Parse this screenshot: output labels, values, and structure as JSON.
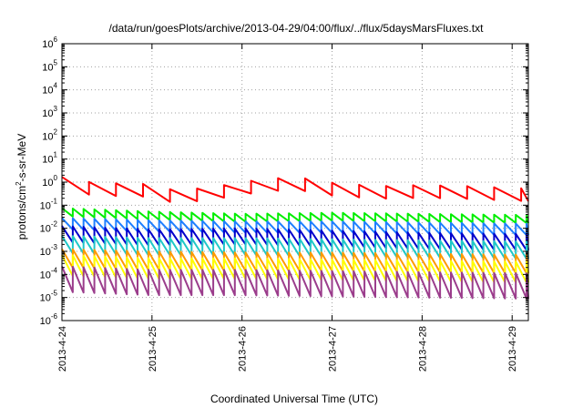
{
  "chart_data": {
    "type": "line",
    "title": "/data/run/goesPlots/archive/2013-04-29/04:00/flux/../flux/5daysMarsFluxes.txt",
    "xlabel": "Coordinated Universal Time (UTC)",
    "ylabel_main": "protons/cm",
    "ylabel_sup": "2",
    "ylabel_tail": "-s-sr-MeV",
    "yscale": "log",
    "ylim_exp": [
      -6,
      6
    ],
    "xlim_days": [
      0,
      5.18
    ],
    "grid": true,
    "x_tick_labels": [
      "2013-4-24",
      "2013-4-25",
      "2013-4-26",
      "2013-4-27",
      "2013-4-28",
      "2013-4-29"
    ],
    "x_tick_days": [
      0,
      1,
      2,
      3,
      4,
      5
    ],
    "y_tick_exps": [
      -6,
      -5,
      -4,
      -3,
      -2,
      -1,
      0,
      1,
      2,
      3,
      4,
      5,
      6
    ],
    "series": [
      {
        "color": "#ff0000",
        "period": 0.3,
        "amp": 0.55,
        "base_log": [
          [
            0,
            -0.05
          ],
          [
            0.35,
            -0.3
          ],
          [
            0.5,
            -0.5
          ],
          [
            0.7,
            -0.15
          ],
          [
            1.0,
            -0.45
          ],
          [
            1.3,
            -0.65
          ],
          [
            1.6,
            -0.5
          ],
          [
            1.9,
            -0.35
          ],
          [
            2.2,
            -0.15
          ],
          [
            2.6,
            -0.05
          ],
          [
            3.0,
            -0.3
          ],
          [
            3.5,
            -0.45
          ],
          [
            4.0,
            -0.4
          ],
          [
            4.5,
            -0.45
          ],
          [
            5.18,
            -0.55
          ]
        ]
      },
      {
        "color": "#00ee00",
        "period": 0.12,
        "amp": 0.35,
        "base_log": [
          [
            0,
            -1.3
          ],
          [
            1.0,
            -1.45
          ],
          [
            2.0,
            -1.55
          ],
          [
            3.0,
            -1.5
          ],
          [
            4.0,
            -1.55
          ],
          [
            5.18,
            -1.6
          ]
        ]
      },
      {
        "color": "#1e7fff",
        "period": 0.12,
        "amp": 0.5,
        "base_log": [
          [
            0,
            -1.8
          ],
          [
            1.0,
            -1.9
          ],
          [
            2.0,
            -1.95
          ],
          [
            3.0,
            -1.95
          ],
          [
            4.0,
            -2.0
          ],
          [
            5.18,
            -2.05
          ]
        ]
      },
      {
        "color": "#0000cc",
        "period": 0.12,
        "amp": 0.7,
        "base_log": [
          [
            0,
            -2.25
          ],
          [
            1.0,
            -2.4
          ],
          [
            2.0,
            -2.35
          ],
          [
            3.0,
            -2.45
          ],
          [
            4.0,
            -2.55
          ],
          [
            5.18,
            -2.6
          ]
        ]
      },
      {
        "color": "#1ec8c8",
        "period": 0.12,
        "amp": 0.75,
        "base_log": [
          [
            0,
            -2.7
          ],
          [
            1.0,
            -2.8
          ],
          [
            2.0,
            -2.8
          ],
          [
            3.0,
            -2.85
          ],
          [
            4.0,
            -2.9
          ],
          [
            5.18,
            -2.95
          ]
        ]
      },
      {
        "color": "#ff9900",
        "period": 0.12,
        "amp": 0.8,
        "base_log": [
          [
            0,
            -3.3
          ],
          [
            1.0,
            -3.4
          ],
          [
            2.0,
            -3.45
          ],
          [
            3.0,
            -3.45
          ],
          [
            4.0,
            -3.5
          ],
          [
            5.18,
            -3.55
          ]
        ]
      },
      {
        "color": "#ffff00",
        "period": 0.12,
        "amp": 0.9,
        "base_log": [
          [
            0,
            -3.6
          ],
          [
            1.0,
            -3.75
          ],
          [
            2.0,
            -3.75
          ],
          [
            3.0,
            -3.8
          ],
          [
            4.0,
            -3.85
          ],
          [
            5.18,
            -3.9
          ]
        ]
      },
      {
        "color": "#9b3d8c",
        "period": 0.12,
        "amp": 1.1,
        "base_log": [
          [
            0,
            -4.2
          ],
          [
            1.0,
            -4.35
          ],
          [
            2.0,
            -4.35
          ],
          [
            3.0,
            -4.4
          ],
          [
            4.0,
            -4.45
          ],
          [
            5.18,
            -4.5
          ]
        ]
      }
    ]
  }
}
